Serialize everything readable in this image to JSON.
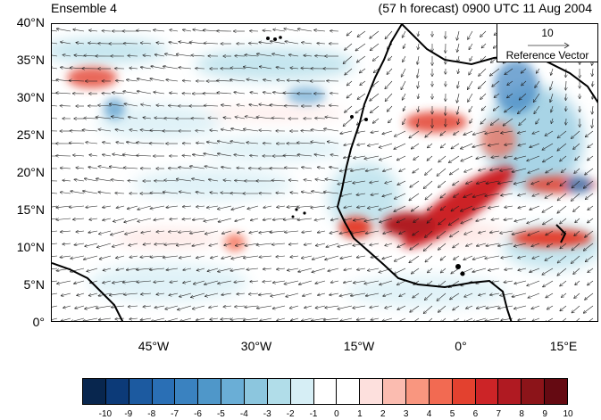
{
  "header": {
    "left_title": "Ensemble 4",
    "right_title": "(57 h forecast) 0900 UTC 11 Aug 2004"
  },
  "map": {
    "lat_labels": [
      "40°N",
      "35°N",
      "30°N",
      "25°N",
      "20°N",
      "15°N",
      "10°N",
      "5°N",
      "0°"
    ],
    "lon_labels": [
      "45°W",
      "30°W",
      "15°W",
      "0°",
      "15°E"
    ],
    "lon_range": [
      -60,
      20
    ],
    "lat_range": [
      0,
      40
    ],
    "anomaly_positive_color": "#c8102e",
    "anomaly_negative_color": "#2166ac"
  },
  "reference_vector": {
    "magnitude": "10",
    "label": "Reference Vector"
  },
  "colorbar": {
    "labels": [
      "-10",
      "-9",
      "-8",
      "-7",
      "-6",
      "-5",
      "-4",
      "-3",
      "-2",
      "-1",
      "0",
      "1",
      "2",
      "3",
      "4",
      "5",
      "6",
      "7",
      "8",
      "9",
      "10"
    ],
    "colors": [
      "#08264e",
      "#0c3a78",
      "#1c5aa0",
      "#2a6fb5",
      "#3a82c0",
      "#4f97c9",
      "#6aaed6",
      "#8cc6de",
      "#b1dde9",
      "#d6eef5",
      "#ffffff",
      "#ffffff",
      "#fde0dd",
      "#fbbcb0",
      "#f9967f",
      "#f26a52",
      "#e3412f",
      "#cc2427",
      "#b01a22",
      "#8c1419",
      "#650a12"
    ]
  }
}
